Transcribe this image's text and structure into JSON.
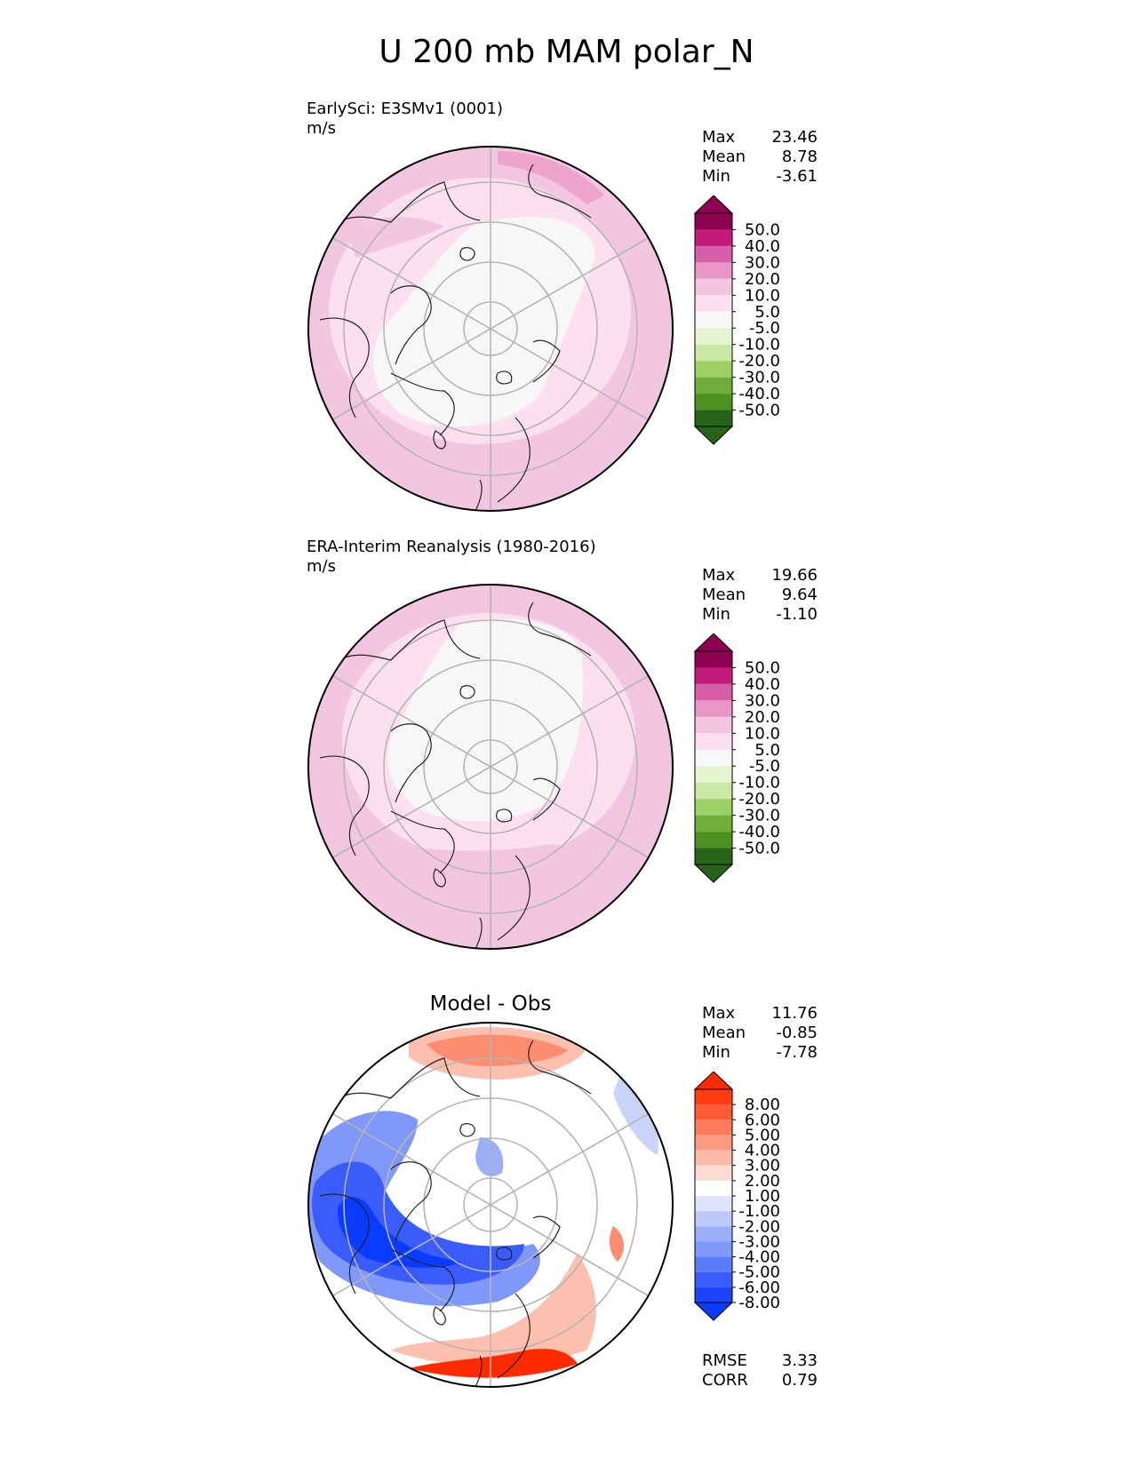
{
  "figure": {
    "title": "U 200 mb MAM polar_N"
  },
  "colors": {
    "pink_0": "#f7f7f7",
    "pink_1": "#fde0ef",
    "pink_2": "#f2c5e0",
    "pink_3": "#e995c5",
    "pink_4": "#d75ea8",
    "pink_5": "#c51b7d",
    "pink_6": "#8e0152",
    "green_1": "#e6f5d0",
    "green_2": "#c8e8a4",
    "green_3": "#9ccf66",
    "green_4": "#72ad3a",
    "green_5": "#4d9221",
    "green_6": "#276419",
    "blue_dark": "#0a3cff",
    "red_dark": "#ff2a00",
    "coast": "#222222",
    "grid": "#b5b5b5"
  },
  "chart_data": [
    {
      "type": "heatmap",
      "projection": "north-polar-stereographic",
      "name": "EarlySci: E3SMv1 (0001)",
      "units": "m/s",
      "stats": [
        {
          "label": "Max",
          "value": "23.46"
        },
        {
          "label": "Mean",
          "value": "8.78"
        },
        {
          "label": "Min",
          "value": "-3.61"
        }
      ],
      "colorbar": {
        "levels": [
          "50.0",
          "40.0",
          "30.0",
          "20.0",
          "10.0",
          "5.0",
          "-5.0",
          "-10.0",
          "-20.0",
          "-30.0",
          "-40.0",
          "-50.0"
        ],
        "extend": "both"
      },
      "field": {
        "min": -3.61,
        "mean": 8.78,
        "max": 23.46
      }
    },
    {
      "type": "heatmap",
      "projection": "north-polar-stereographic",
      "name": "ERA-Interim Reanalysis (1980-2016)",
      "units": "m/s",
      "stats": [
        {
          "label": "Max",
          "value": "19.66"
        },
        {
          "label": "Mean",
          "value": "9.64"
        },
        {
          "label": "Min",
          "value": "-1.10"
        }
      ],
      "colorbar": {
        "levels": [
          "50.0",
          "40.0",
          "30.0",
          "20.0",
          "10.0",
          "5.0",
          "-5.0",
          "-10.0",
          "-20.0",
          "-30.0",
          "-40.0",
          "-50.0"
        ],
        "extend": "both"
      },
      "field": {
        "min": -1.1,
        "mean": 9.64,
        "max": 19.66
      }
    },
    {
      "type": "heatmap",
      "projection": "north-polar-stereographic",
      "name": "Model - Obs",
      "units": "",
      "stats": [
        {
          "label": "Max",
          "value": "11.76"
        },
        {
          "label": "Mean",
          "value": "-0.85"
        },
        {
          "label": "Min",
          "value": "-7.78"
        }
      ],
      "metrics": [
        {
          "label": "RMSE",
          "value": "3.33"
        },
        {
          "label": "CORR",
          "value": "0.79"
        }
      ],
      "colorbar": {
        "levels": [
          "8.00",
          "6.00",
          "5.00",
          "4.00",
          "3.00",
          "2.00",
          "1.00",
          "-1.00",
          "-2.00",
          "-3.00",
          "-4.00",
          "-5.00",
          "-6.00",
          "-8.00"
        ],
        "extend": "both"
      },
      "field": {
        "min": -7.78,
        "mean": -0.85,
        "max": 11.76
      }
    }
  ]
}
